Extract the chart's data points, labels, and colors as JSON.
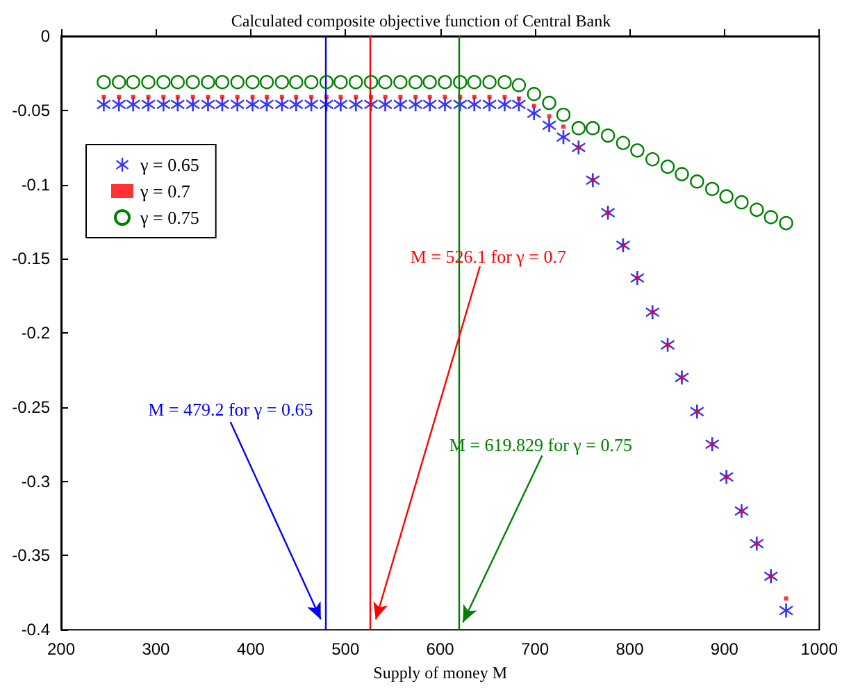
{
  "chart_data": {
    "type": "scatter",
    "title": "Calculated composite objective function of Central Bank",
    "xlabel": "Supply of money M",
    "x": [
      245,
      261,
      276,
      292,
      308,
      323,
      339,
      355,
      370,
      386,
      402,
      417,
      433,
      448,
      464,
      480,
      495,
      511,
      527,
      542,
      558,
      574,
      589,
      605,
      621,
      636,
      652,
      668,
      683,
      699,
      715,
      730,
      746,
      761,
      777,
      793,
      808,
      824,
      840,
      855,
      871,
      887,
      902,
      918,
      934,
      949,
      965
    ],
    "series": [
      {
        "name": "γ = 0.65",
        "color": "#0000ff",
        "marker": "star",
        "values": [
          -0.046,
          -0.046,
          -0.046,
          -0.046,
          -0.046,
          -0.046,
          -0.046,
          -0.046,
          -0.046,
          -0.046,
          -0.046,
          -0.046,
          -0.046,
          -0.046,
          -0.046,
          -0.046,
          -0.046,
          -0.046,
          -0.046,
          -0.046,
          -0.046,
          -0.046,
          -0.046,
          -0.046,
          -0.046,
          -0.046,
          -0.046,
          -0.046,
          -0.046,
          -0.052,
          -0.06,
          -0.068,
          -0.075,
          -0.097,
          -0.119,
          -0.141,
          -0.163,
          -0.186,
          -0.208,
          -0.23,
          -0.253,
          -0.275,
          -0.297,
          -0.32,
          -0.342,
          -0.364,
          -0.387
        ]
      },
      {
        "name": "γ = 0.7",
        "color": "#ff0000",
        "marker": "square",
        "values": [
          -0.041,
          -0.041,
          -0.041,
          -0.041,
          -0.041,
          -0.041,
          -0.041,
          -0.041,
          -0.041,
          -0.041,
          -0.041,
          -0.041,
          -0.041,
          -0.041,
          -0.041,
          -0.041,
          -0.041,
          -0.041,
          -0.041,
          -0.041,
          -0.041,
          -0.041,
          -0.041,
          -0.041,
          -0.041,
          -0.041,
          -0.041,
          -0.041,
          -0.042,
          -0.047,
          -0.054,
          -0.061,
          -0.075,
          -0.097,
          -0.119,
          -0.141,
          -0.163,
          -0.186,
          -0.208,
          -0.23,
          -0.253,
          -0.275,
          -0.297,
          -0.32,
          -0.342,
          -0.364,
          -0.379
        ]
      },
      {
        "name": "γ = 0.75",
        "color": "#008000",
        "marker": "circle",
        "values": [
          -0.031,
          -0.031,
          -0.031,
          -0.031,
          -0.031,
          -0.031,
          -0.031,
          -0.031,
          -0.031,
          -0.031,
          -0.031,
          -0.031,
          -0.031,
          -0.031,
          -0.031,
          -0.031,
          -0.031,
          -0.031,
          -0.031,
          -0.031,
          -0.031,
          -0.031,
          -0.031,
          -0.031,
          -0.031,
          -0.031,
          -0.031,
          -0.031,
          -0.033,
          -0.039,
          -0.045,
          -0.053,
          -0.062,
          -0.062,
          -0.067,
          -0.072,
          -0.077,
          -0.083,
          -0.088,
          -0.093,
          -0.098,
          -0.103,
          -0.108,
          -0.112,
          -0.117,
          -0.122,
          -0.126
        ]
      }
    ],
    "xlim": [
      200,
      1000
    ],
    "xticks": [
      200,
      300,
      400,
      500,
      600,
      700,
      800,
      900,
      1000
    ],
    "ylim": [
      -0.4,
      0
    ],
    "yticks": [
      -0.4,
      -0.35,
      -0.3,
      -0.25,
      -0.2,
      -0.15,
      -0.1,
      -0.05,
      0
    ],
    "ref_lines": [
      {
        "axis": "x",
        "value": 479.2,
        "color": "#0000ff"
      },
      {
        "axis": "x",
        "value": 526.1,
        "color": "#ff0000"
      },
      {
        "axis": "x",
        "value": 619.829,
        "color": "#008000"
      }
    ],
    "annotations": [
      {
        "text": "M = 479.2 for γ = 0.65",
        "x": 474,
        "y": -0.393
      },
      {
        "text": "M = 526.1 for γ = 0.7",
        "x": 532,
        "y": -0.393
      },
      {
        "text": "M = 619.829 for γ = 0.75",
        "x": 624,
        "y": -0.395
      }
    ],
    "grid": false,
    "legend": "top left"
  }
}
